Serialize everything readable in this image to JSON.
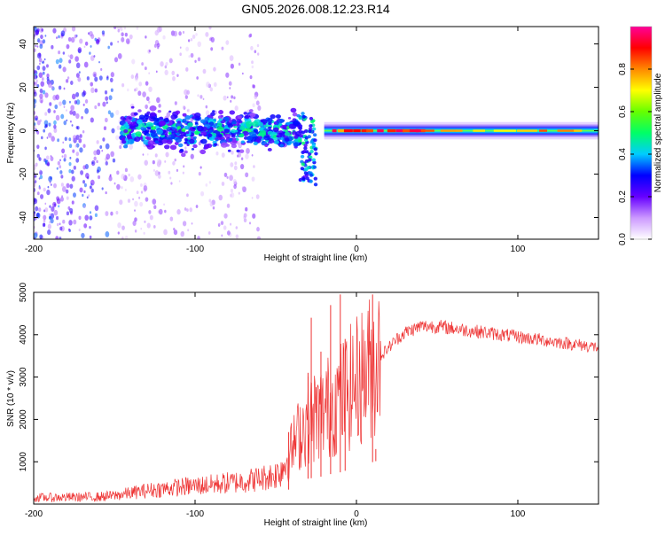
{
  "figure_title": "GN05.2026.008.12.23.R14",
  "chart_data": [
    {
      "type": "heatmap",
      "title": "GN05.2026.008.12.23.R14",
      "xlabel": "Height of straight line (km)",
      "ylabel": "Frequency (Hz)",
      "xlim": [
        -200,
        150
      ],
      "ylim": [
        -50,
        48
      ],
      "x_ticks": [
        -200,
        -100,
        0,
        100
      ],
      "y_ticks": [
        -40,
        -20,
        0,
        20,
        40
      ],
      "colorbar": {
        "label": "Normalized spectral amplitude",
        "range": [
          0,
          1
        ],
        "ticks": [
          0.0,
          0.2,
          0.4,
          0.6,
          0.8
        ],
        "tick_labels": [
          "0.0",
          "0.2",
          "0.4",
          "0.6",
          "0.8"
        ],
        "colors": [
          "#ffffff",
          "#cc99ff",
          "#6600ff",
          "#0000ff",
          "#00ccff",
          "#00ff66",
          "#66ff00",
          "#ffff00",
          "#ff8800",
          "#ff0000",
          "#ff0099"
        ]
      },
      "features": [
        {
          "name": "diffuse noise",
          "x_range": [
            -200,
            -60
          ],
          "freq_range": [
            -50,
            48
          ],
          "amplitude": 0.1
        },
        {
          "name": "broadened carrier",
          "x_range": [
            -145,
            -35
          ],
          "center_freq": 0,
          "half_width": 12,
          "amplitude": 0.35
        },
        {
          "name": "downward excursion",
          "x_range": [
            -35,
            -25
          ],
          "freq_range": [
            -25,
            8
          ],
          "amplitude": 0.3
        },
        {
          "name": "clean carrier",
          "x_range": [
            -20,
            150
          ],
          "center_freq": 0,
          "half_width": 3,
          "amplitude": 0.6
        },
        {
          "name": "peak carrier",
          "x_range": [
            -15,
            40
          ],
          "center_freq": 0,
          "amplitude": 0.95
        }
      ]
    },
    {
      "type": "line",
      "xlabel": "Height of straight line (km)",
      "ylabel": "SNR (10 * v/v)",
      "xlim": [
        -200,
        150
      ],
      "ylim": [
        0,
        5000
      ],
      "x_ticks": [
        -200,
        -100,
        0,
        100
      ],
      "y_ticks": [
        1000,
        2000,
        3000,
        4000,
        5000
      ],
      "color": "#ee3333",
      "series": [
        {
          "name": "SNR",
          "x": [
            -200,
            -180,
            -160,
            -150,
            -140,
            -130,
            -120,
            -110,
            -100,
            -90,
            -80,
            -70,
            -60,
            -50,
            -45,
            -40,
            -35,
            -30,
            -25,
            -20,
            -15,
            -10,
            -5,
            0,
            5,
            10,
            15,
            20,
            25,
            30,
            40,
            50,
            60,
            70,
            80,
            90,
            100,
            110,
            120,
            130,
            140,
            150
          ],
          "y": [
            150,
            160,
            170,
            200,
            260,
            320,
            360,
            400,
            430,
            460,
            500,
            540,
            600,
            700,
            900,
            1300,
            1700,
            2000,
            2100,
            2200,
            2400,
            2500,
            2700,
            2900,
            3100,
            3300,
            3500,
            3700,
            3900,
            4050,
            4200,
            4200,
            4150,
            4100,
            4050,
            4000,
            3950,
            3900,
            3850,
            3800,
            3750,
            3700
          ]
        }
      ],
      "spikes": [
        {
          "x": -42,
          "y": 1700
        },
        {
          "x": -30,
          "y": 3100
        },
        {
          "x": -28,
          "y": 4400
        },
        {
          "x": -22,
          "y": 3600
        },
        {
          "x": -16,
          "y": 4700
        },
        {
          "x": -10,
          "y": 4950
        },
        {
          "x": -7,
          "y": 3900
        },
        {
          "x": 10,
          "y": 4950
        },
        {
          "x": 12,
          "y": 1300
        }
      ]
    }
  ]
}
